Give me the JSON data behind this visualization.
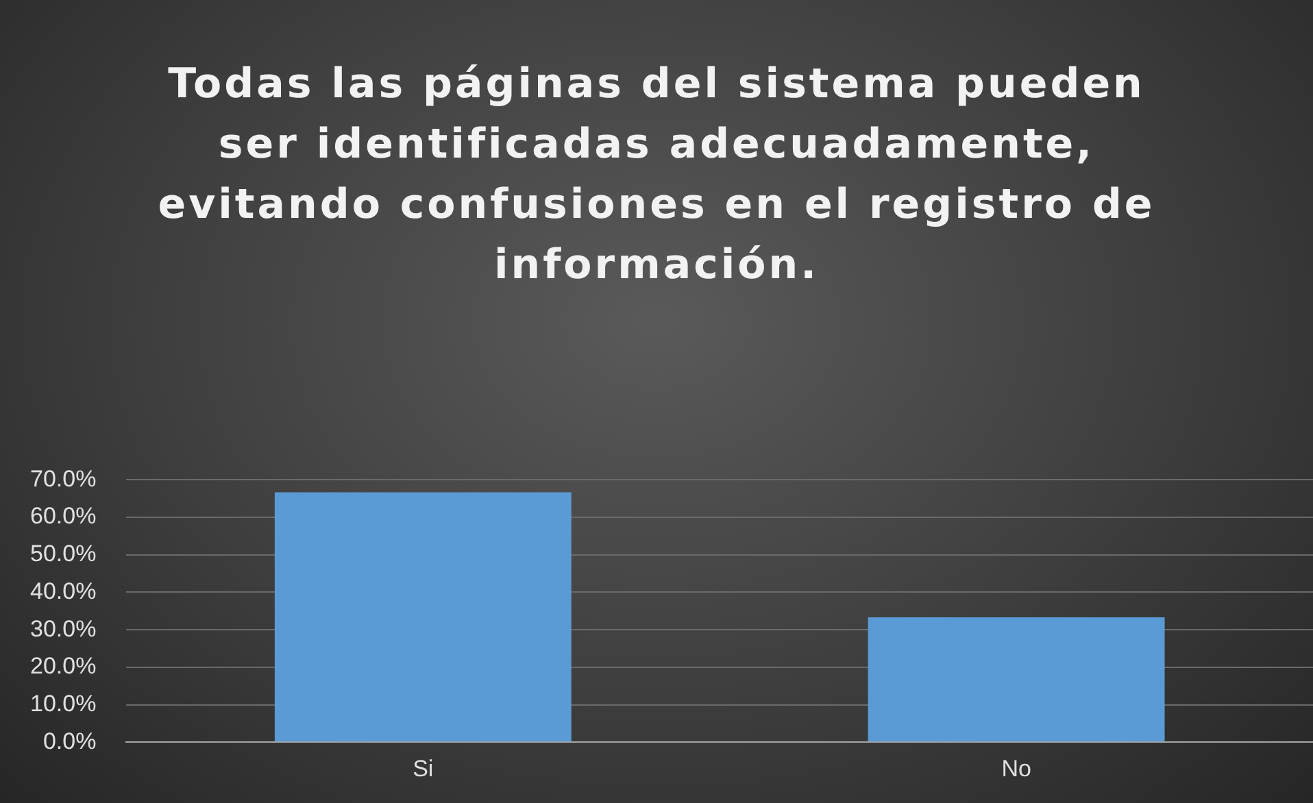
{
  "chart_data": {
    "type": "bar",
    "title": "Todas las páginas del sistema pueden ser identificadas adecuadamente, evitando confusiones en el registro de información.",
    "categories": [
      "Si",
      "No"
    ],
    "values": [
      66.7,
      33.3
    ],
    "color": "#5b9bd5",
    "ylim": [
      0,
      70
    ],
    "yticks": [
      {
        "value": 0,
        "label": "0.0%"
      },
      {
        "value": 10,
        "label": "10.0%"
      },
      {
        "value": 20,
        "label": "20.0%"
      },
      {
        "value": 30,
        "label": "30.0%"
      },
      {
        "value": 40,
        "label": "40.0%"
      },
      {
        "value": 50,
        "label": "50.0%"
      },
      {
        "value": 60,
        "label": "60.0%"
      },
      {
        "value": 70,
        "label": "70.0%"
      }
    ],
    "grid": "y"
  }
}
